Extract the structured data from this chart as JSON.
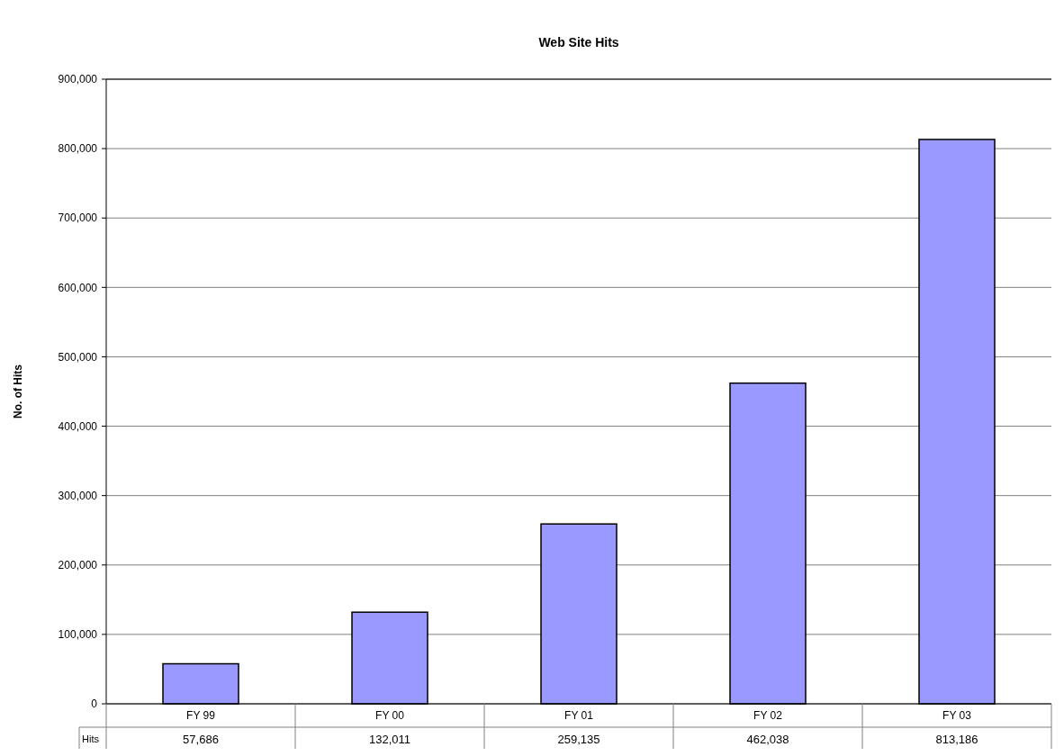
{
  "chart_data": {
    "type": "bar",
    "title": "Web Site Hits",
    "ylabel": "No. of Hits",
    "categories": [
      "FY 99",
      "FY 00",
      "FY 01",
      "FY 02",
      "FY 03"
    ],
    "series": [
      {
        "name": "Hits",
        "color": "#9999ff",
        "values": [
          57686,
          132011,
          259135,
          462038,
          813186
        ],
        "value_labels": [
          "57,686",
          "132,011",
          "259,135",
          "462,038",
          "813,186"
        ]
      }
    ],
    "ylim": [
      0,
      900000
    ],
    "yticks": [
      {
        "value": 0,
        "label": "0"
      },
      {
        "value": 100000,
        "label": "100,000"
      },
      {
        "value": 200000,
        "label": "200,000"
      },
      {
        "value": 300000,
        "label": "300,000"
      },
      {
        "value": 400000,
        "label": "400,000"
      },
      {
        "value": 500000,
        "label": "500,000"
      },
      {
        "value": 600000,
        "label": "600,000"
      },
      {
        "value": 700000,
        "label": "700,000"
      },
      {
        "value": 800000,
        "label": "800,000"
      },
      {
        "value": 900000,
        "label": "900,000"
      }
    ],
    "grid": "y"
  }
}
